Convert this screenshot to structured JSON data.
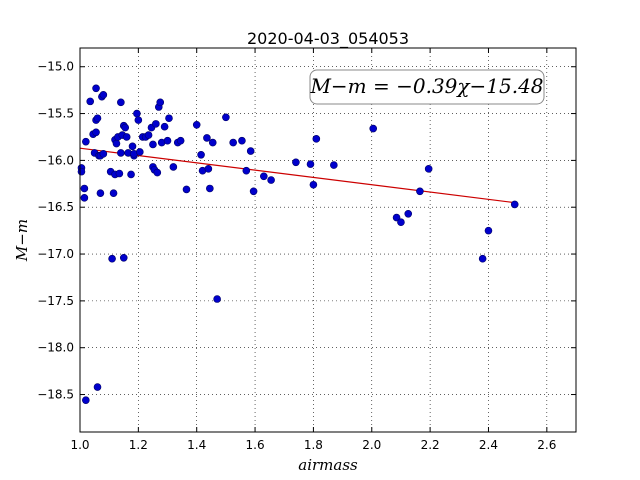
{
  "chart_data": {
    "type": "scatter",
    "title": "2020-04-03_054053",
    "xlabel": "airmass",
    "ylabel": "M−m",
    "xlim": [
      1.0,
      2.7
    ],
    "ylim": [
      -18.9,
      -14.8
    ],
    "y_axis_inverted": true,
    "grid": true,
    "x_ticks": [
      "1.0",
      "1.2",
      "1.4",
      "1.6",
      "1.8",
      "2.0",
      "2.2",
      "2.4",
      "2.6"
    ],
    "y_ticks": [
      "−15.0",
      "−15.5",
      "−16.0",
      "−16.5",
      "−17.0",
      "−17.5",
      "−18.0",
      "−18.5"
    ],
    "point_color": "#0000cc",
    "fit_color": "#cc0000",
    "annotation": "M−m = −0.39χ−15.48",
    "annotation_placement": "top-right",
    "fit": {
      "slope": -0.39,
      "intercept": -15.48,
      "x_range": [
        1.0,
        2.49
      ]
    },
    "points": [
      [
        1.005,
        -16.08
      ],
      [
        1.005,
        -16.12
      ],
      [
        1.015,
        -16.3
      ],
      [
        1.015,
        -16.4
      ],
      [
        1.02,
        -15.8
      ],
      [
        1.02,
        -18.56
      ],
      [
        1.035,
        -15.37
      ],
      [
        1.045,
        -15.72
      ],
      [
        1.05,
        -15.92
      ],
      [
        1.055,
        -15.7
      ],
      [
        1.055,
        -15.23
      ],
      [
        1.055,
        -15.57
      ],
      [
        1.06,
        -15.55
      ],
      [
        1.06,
        -18.42
      ],
      [
        1.065,
        -15.95
      ],
      [
        1.07,
        -15.95
      ],
      [
        1.07,
        -16.35
      ],
      [
        1.075,
        -15.32
      ],
      [
        1.08,
        -15.3
      ],
      [
        1.08,
        -15.93
      ],
      [
        1.105,
        -16.12
      ],
      [
        1.11,
        -17.05
      ],
      [
        1.115,
        -16.35
      ],
      [
        1.12,
        -15.78
      ],
      [
        1.12,
        -16.15
      ],
      [
        1.125,
        -15.82
      ],
      [
        1.13,
        -15.75
      ],
      [
        1.135,
        -16.14
      ],
      [
        1.14,
        -15.92
      ],
      [
        1.14,
        -15.38
      ],
      [
        1.145,
        -15.73
      ],
      [
        1.15,
        -17.04
      ],
      [
        1.15,
        -15.63
      ],
      [
        1.155,
        -15.65
      ],
      [
        1.16,
        -15.75
      ],
      [
        1.165,
        -15.92
      ],
      [
        1.175,
        -16.15
      ],
      [
        1.18,
        -15.85
      ],
      [
        1.185,
        -15.95
      ],
      [
        1.185,
        -15.93
      ],
      [
        1.195,
        -15.5
      ],
      [
        1.2,
        -15.57
      ],
      [
        1.205,
        -15.91
      ],
      [
        1.215,
        -15.75
      ],
      [
        1.225,
        -15.75
      ],
      [
        1.235,
        -15.73
      ],
      [
        1.245,
        -15.65
      ],
      [
        1.25,
        -16.07
      ],
      [
        1.25,
        -15.83
      ],
      [
        1.255,
        -16.1
      ],
      [
        1.26,
        -15.61
      ],
      [
        1.265,
        -16.13
      ],
      [
        1.27,
        -15.43
      ],
      [
        1.275,
        -15.38
      ],
      [
        1.28,
        -15.81
      ],
      [
        1.29,
        -15.64
      ],
      [
        1.3,
        -15.79
      ],
      [
        1.305,
        -15.55
      ],
      [
        1.32,
        -16.07
      ],
      [
        1.335,
        -15.81
      ],
      [
        1.345,
        -15.79
      ],
      [
        1.365,
        -16.31
      ],
      [
        1.4,
        -15.62
      ],
      [
        1.415,
        -15.94
      ],
      [
        1.42,
        -16.11
      ],
      [
        1.435,
        -15.76
      ],
      [
        1.44,
        -16.09
      ],
      [
        1.445,
        -16.3
      ],
      [
        1.455,
        -15.81
      ],
      [
        1.47,
        -17.48
      ],
      [
        1.5,
        -15.54
      ],
      [
        1.525,
        -15.81
      ],
      [
        1.555,
        -15.79
      ],
      [
        1.57,
        -16.11
      ],
      [
        1.585,
        -15.9
      ],
      [
        1.595,
        -16.33
      ],
      [
        1.63,
        -16.17
      ],
      [
        1.655,
        -16.21
      ],
      [
        1.74,
        -16.02
      ],
      [
        1.79,
        -16.04
      ],
      [
        1.8,
        -16.26
      ],
      [
        1.81,
        -15.77
      ],
      [
        1.87,
        -16.05
      ],
      [
        2.005,
        -15.66
      ],
      [
        2.085,
        -16.61
      ],
      [
        2.1,
        -16.66
      ],
      [
        2.125,
        -16.57
      ],
      [
        2.165,
        -16.33
      ],
      [
        2.195,
        -16.09
      ],
      [
        2.38,
        -17.05
      ],
      [
        2.4,
        -16.75
      ],
      [
        2.49,
        -16.47
      ]
    ]
  }
}
